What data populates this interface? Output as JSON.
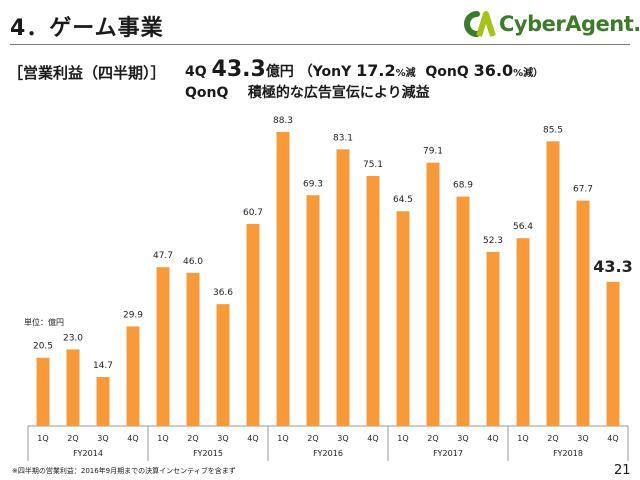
{
  "header": {
    "title": "4．ゲーム事業",
    "logo_text": "CyberAgent."
  },
  "headline": {
    "section_label": "［営業利益（四半期）］",
    "quarter": "4Q",
    "value": "43.3",
    "unit": "億円",
    "yoy_label": "（YonY",
    "yoy_value": "17.2",
    "yoy_suffix": "%減",
    "qoq_label": "QonQ",
    "qoq_value": "36.0",
    "qoq_suffix": "%減）",
    "sub_label": "QonQ",
    "sub_text": "積極的な広告宣伝により減益"
  },
  "unit_label": "単位：億円",
  "footnote": "※四半期の営業利益：2016年9月期までの決算インセンティブを含まず",
  "page_number": "21",
  "colors": {
    "bar": "#f79a3a",
    "axis": "#9a9a9a",
    "logo_green": "#3d7a2a",
    "logo_lime": "#a8c21d"
  },
  "chart_data": {
    "type": "bar",
    "groups": [
      {
        "name": "FY2014",
        "categories": [
          "1Q",
          "2Q",
          "3Q",
          "4Q"
        ],
        "values": [
          20.5,
          23.0,
          14.7,
          29.9
        ],
        "labels": [
          "20.5",
          "23.0",
          "14.7",
          "29.9"
        ]
      },
      {
        "name": "FY2015",
        "categories": [
          "1Q",
          "2Q",
          "3Q",
          "4Q"
        ],
        "values": [
          47.7,
          46.0,
          36.6,
          60.7
        ],
        "labels": [
          "47.7",
          "46.0",
          "36.6",
          "60.7"
        ]
      },
      {
        "name": "FY2016",
        "categories": [
          "1Q",
          "2Q",
          "3Q",
          "4Q"
        ],
        "values": [
          88.3,
          69.3,
          83.1,
          75.1
        ],
        "labels": [
          "88.3",
          "69.3",
          "83.1",
          "75.1"
        ]
      },
      {
        "name": "FY2017",
        "categories": [
          "1Q",
          "2Q",
          "3Q",
          "4Q"
        ],
        "values": [
          64.5,
          79.1,
          68.9,
          52.3
        ],
        "labels": [
          "64.5",
          "79.1",
          "68.9",
          "52.3"
        ]
      },
      {
        "name": "FY2018",
        "categories": [
          "1Q",
          "2Q",
          "3Q",
          "4Q"
        ],
        "values": [
          56.4,
          85.5,
          67.7,
          43.3
        ],
        "labels": [
          "56.4",
          "85.5",
          "67.7",
          "43.3"
        ]
      }
    ],
    "highlight": {
      "group": 4,
      "index": 3
    },
    "ylim": [
      0,
      88.3
    ],
    "grid": false,
    "legend": "none"
  }
}
